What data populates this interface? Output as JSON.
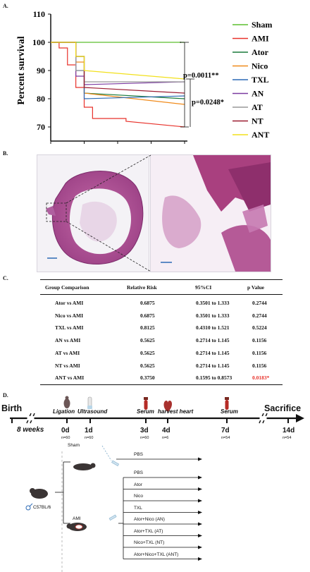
{
  "panels": {
    "a": "A.",
    "b": "B.",
    "c": "C.",
    "d": "D."
  },
  "chart_data": {
    "type": "line",
    "ylabel": "Percent survival",
    "ylim": [
      70,
      110
    ],
    "yticks": [
      "70",
      "80",
      "90",
      "100",
      "110"
    ],
    "series": [
      {
        "name": "Sham",
        "color": "#5cbf2e",
        "x": [
          0,
          16
        ],
        "y": [
          100,
          100
        ]
      },
      {
        "name": "AMI",
        "color": "#e8322b",
        "x": [
          0,
          1,
          1,
          2,
          2,
          3,
          3,
          4,
          4,
          5,
          5,
          8,
          8,
          9,
          9,
          16
        ],
        "y": [
          100,
          100,
          98,
          98,
          92,
          92,
          84,
          84,
          77,
          77,
          73,
          73,
          73,
          73,
          72,
          70
        ]
      },
      {
        "name": "Ator",
        "color": "#1a7a3a",
        "x": [
          0,
          3,
          3,
          4,
          4,
          16
        ],
        "y": [
          100,
          100,
          95,
          95,
          82,
          80
        ]
      },
      {
        "name": "Nico",
        "color": "#f08a1a",
        "x": [
          0,
          3,
          3,
          4,
          4,
          16
        ],
        "y": [
          100,
          100,
          93,
          93,
          82,
          78
        ]
      },
      {
        "name": "TXL",
        "color": "#2c6ab5",
        "x": [
          0,
          3,
          3,
          4,
          4,
          16
        ],
        "y": [
          100,
          100,
          90,
          90,
          80,
          81
        ]
      },
      {
        "name": "AN",
        "color": "#7a3aa0",
        "x": [
          0,
          3,
          3,
          4,
          4,
          16
        ],
        "y": [
          100,
          100,
          88,
          88,
          85,
          86
        ]
      },
      {
        "name": "AT",
        "color": "#999999",
        "x": [
          0,
          3,
          3,
          4,
          4,
          16
        ],
        "y": [
          100,
          100,
          90,
          90,
          86,
          86
        ]
      },
      {
        "name": "NT",
        "color": "#9b1b30",
        "x": [
          0,
          3,
          3,
          4,
          4,
          16
        ],
        "y": [
          100,
          100,
          95,
          95,
          84,
          82
        ]
      },
      {
        "name": "ANT",
        "color": "#f2e01b",
        "x": [
          0,
          3,
          3,
          4,
          4,
          16
        ],
        "y": [
          100,
          100,
          95,
          95,
          90,
          87
        ]
      }
    ],
    "annotations": [
      "p=0.0011**",
      "p=0.0248*"
    ]
  },
  "table": {
    "headers": [
      "Group Comparison",
      "Relative Risk",
      "95%CI",
      "p Value"
    ],
    "rows": [
      [
        "Ator vs AMI",
        "0.6875",
        "0.3501 to 1.333",
        "0.2744"
      ],
      [
        "Nico vs AMI",
        "0.6875",
        "0.3501 to 1.333",
        "0.2744"
      ],
      [
        "TXL vs AMI",
        "0.8125",
        "0.4310 to 1.521",
        "0.5224"
      ],
      [
        "AN vs AMI",
        "0.5625",
        "0.2714 to 1.145",
        "0.1156"
      ],
      [
        "AT vs AMI",
        "0.5625",
        "0.2714 to 1.145",
        "0.1156"
      ],
      [
        "NT vs AMI",
        "0.5625",
        "0.2714 to 1.145",
        "0.1156"
      ],
      [
        "ANT vs AMI",
        "0.3750",
        "0.1595 to 0.8573",
        "0.0183*"
      ]
    ],
    "highlight_color": "#e8322b"
  },
  "timeline": {
    "start": "Birth",
    "end": "Sacrifice",
    "age": "8 weeks",
    "points": [
      {
        "day": "0d",
        "event": "Ligation",
        "n": "n=60"
      },
      {
        "day": "1d",
        "event": "Ultrasound",
        "n": "n=60"
      },
      {
        "day": "3d",
        "event": "Serum",
        "n": "n=60"
      },
      {
        "day": "4d",
        "event": "harvest heart",
        "n": "n=6"
      },
      {
        "day": "7d",
        "event": "Serum",
        "n": "n=54"
      },
      {
        "day": "14d",
        "event": "",
        "n": "n=54"
      }
    ]
  },
  "groups": {
    "mouse_label": "C57BL/6",
    "sham_label": "Sham",
    "ami_label": "AMI",
    "sham_arms": [
      "PBS"
    ],
    "ami_arms": [
      "PBS",
      "Ator",
      "Nico",
      "TXL",
      "Ator+Nico (AN)",
      "Ator+TXL (AT)",
      "Nico+TXL (NT)",
      "Ator+Nico+TXL (ANT)"
    ]
  }
}
